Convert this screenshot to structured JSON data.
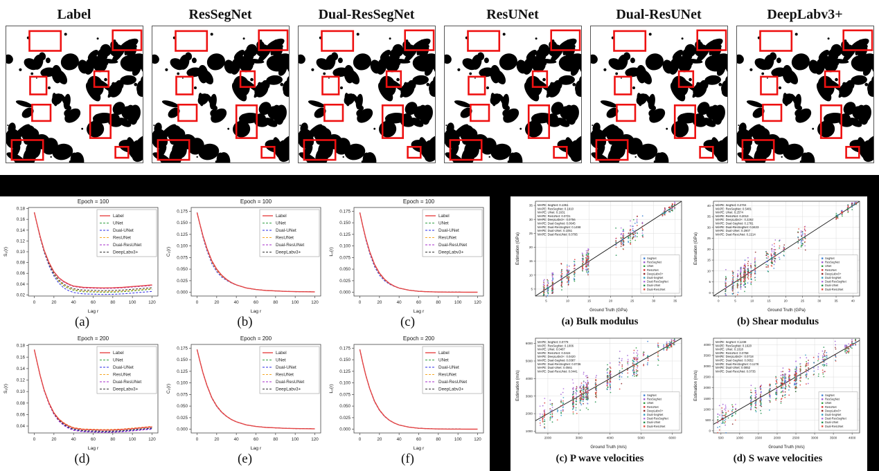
{
  "colors": {
    "background": "#000000",
    "panel": "#ffffff",
    "highlight_box": "#ee1111"
  },
  "top_row": {
    "panels": [
      {
        "title": "Label"
      },
      {
        "title": "ResSegNet"
      },
      {
        "title": "Dual-ResSegNet"
      },
      {
        "title": "ResUNet"
      },
      {
        "title": "Dual-ResUNet"
      },
      {
        "title": "DeepLabv3+"
      }
    ],
    "red_boxes": [
      [
        0.17,
        0.035,
        0.23,
        0.145
      ],
      [
        0.78,
        0.03,
        0.21,
        0.145
      ],
      [
        0.175,
        0.37,
        0.12,
        0.13
      ],
      [
        0.645,
        0.33,
        0.105,
        0.115
      ],
      [
        0.19,
        0.575,
        0.135,
        0.12
      ],
      [
        0.615,
        0.58,
        0.15,
        0.24
      ],
      [
        0.04,
        0.835,
        0.23,
        0.145
      ],
      [
        0.8,
        0.885,
        0.095,
        0.08
      ]
    ]
  },
  "line_series": [
    {
      "name": "Label",
      "color": "#e64545",
      "dash": "solid"
    },
    {
      "name": "UNet",
      "color": "#2e9e3f",
      "dash": "dashed"
    },
    {
      "name": "Dual-UNet",
      "color": "#2929e6",
      "dash": "dashed"
    },
    {
      "name": "ResUNet",
      "color": "#f5a623",
      "dash": "dashed"
    },
    {
      "name": "Dual-ResUNet",
      "color": "#a428c8",
      "dash": "dashed"
    },
    {
      "name": "DeepLabv3+",
      "color": "#333333",
      "dash": "dashed"
    }
  ],
  "scatter_series": [
    {
      "name": "SegNet",
      "color": "#3b7fd4",
      "bias": -0.7
    },
    {
      "name": "ResSegNet",
      "color": "#9b59d0",
      "bias": 1.3
    },
    {
      "name": "UNet",
      "color": "#2e9e3f",
      "bias": -0.5
    },
    {
      "name": "ResUNet",
      "color": "#d93030",
      "bias": 0.15
    },
    {
      "name": "DeepLabv3+",
      "color": "#8c2a2a",
      "bias": 0.3
    },
    {
      "name": "Dual-SegNet",
      "color": "#2c9bbf",
      "bias": -0.2
    },
    {
      "name": "Dual-ResSegNet",
      "color": "#b06fe0",
      "bias": 1.0
    },
    {
      "name": "Dual-UNet",
      "color": "#1f8f4d",
      "bias": -0.4
    },
    {
      "name": "Dual-ResUNet",
      "color": "#e0483a",
      "bias": 0.1
    }
  ],
  "chart_data": [
    {
      "type": "line",
      "caption": "(a)",
      "title": "Epoch = 100",
      "xlabel": "Lag r",
      "ylabel": "S₂(r)",
      "xlim": [
        -6,
        126
      ],
      "ylim": [
        0.018,
        0.182
      ],
      "xticks": [
        0,
        20,
        40,
        60,
        80,
        100,
        120
      ],
      "yticks": [
        0.02,
        0.04,
        0.06,
        0.08,
        0.1,
        0.12,
        0.14,
        0.16,
        0.18
      ],
      "ydec": 2,
      "x": [
        0,
        3,
        6,
        10,
        15,
        20,
        25,
        30,
        35,
        40,
        50,
        60,
        70,
        80,
        90,
        100,
        110,
        120
      ],
      "base": [
        0.173,
        0.15,
        0.128,
        0.103,
        0.08,
        0.063,
        0.052,
        0.045,
        0.04,
        0.0365,
        0.034,
        0.0335,
        0.033,
        0.0332,
        0.034,
        0.0355,
        0.037,
        0.0385
      ],
      "offsets": [
        0,
        -0.008,
        -0.012,
        -0.007,
        -0.001,
        -0.005
      ],
      "offset_mode": "ramp"
    },
    {
      "type": "line",
      "caption": "(b)",
      "title": "Epoch = 100",
      "xlabel": "Lag r",
      "ylabel": "C₂(r)",
      "xlim": [
        -6,
        126
      ],
      "ylim": [
        -0.008,
        0.183
      ],
      "xticks": [
        0,
        20,
        40,
        60,
        80,
        100,
        120
      ],
      "yticks": [
        0.0,
        0.025,
        0.05,
        0.075,
        0.1,
        0.125,
        0.15,
        0.175
      ],
      "ydec": 3,
      "x": [
        0,
        3,
        6,
        10,
        15,
        20,
        25,
        30,
        35,
        40,
        50,
        60,
        70,
        80,
        90,
        100,
        110,
        120
      ],
      "base": [
        0.172,
        0.146,
        0.122,
        0.095,
        0.068,
        0.05,
        0.037,
        0.028,
        0.021,
        0.016,
        0.0095,
        0.006,
        0.004,
        0.003,
        0.002,
        0.0015,
        0.0012,
        0.001
      ],
      "offsets": [
        0,
        -0.002,
        -0.006,
        -0.003,
        0.0005,
        -0.001
      ],
      "offset_mode": "bell"
    },
    {
      "type": "line",
      "caption": "(c)",
      "title": "Epoch = 100",
      "xlabel": "Lag r",
      "ylabel": "L₂(r)",
      "xlim": [
        -6,
        126
      ],
      "ylim": [
        -0.008,
        0.183
      ],
      "xticks": [
        0,
        20,
        40,
        60,
        80,
        100,
        120
      ],
      "yticks": [
        0.0,
        0.025,
        0.05,
        0.075,
        0.1,
        0.125,
        0.15,
        0.175
      ],
      "ydec": 3,
      "x": [
        0,
        3,
        6,
        10,
        15,
        20,
        25,
        30,
        35,
        40,
        50,
        60,
        70,
        80,
        90,
        100,
        110,
        120
      ],
      "base": [
        0.172,
        0.143,
        0.117,
        0.088,
        0.06,
        0.0415,
        0.0285,
        0.0195,
        0.0135,
        0.0092,
        0.0045,
        0.0022,
        0.0012,
        0.0007,
        0.0004,
        0.0003,
        0.0002,
        0.0002
      ],
      "offsets": [
        0,
        -0.001,
        -0.005,
        -0.002,
        0.0005,
        -0.001
      ],
      "offset_mode": "bell"
    },
    {
      "type": "line",
      "caption": "(d)",
      "title": "Epoch = 200",
      "xlabel": "Lag r",
      "ylabel": "S₂(r)",
      "xlim": [
        -6,
        126
      ],
      "ylim": [
        0.028,
        0.182
      ],
      "xticks": [
        0,
        20,
        40,
        60,
        80,
        100,
        120
      ],
      "yticks": [
        0.04,
        0.06,
        0.08,
        0.1,
        0.12,
        0.14,
        0.16,
        0.18
      ],
      "ydec": 2,
      "x": [
        0,
        3,
        6,
        10,
        15,
        20,
        25,
        30,
        35,
        40,
        50,
        60,
        70,
        80,
        90,
        100,
        110,
        120
      ],
      "base": [
        0.173,
        0.15,
        0.128,
        0.103,
        0.08,
        0.063,
        0.052,
        0.045,
        0.04,
        0.0365,
        0.034,
        0.0335,
        0.033,
        0.0332,
        0.034,
        0.0355,
        0.037,
        0.0385
      ],
      "offsets": [
        0,
        -0.002,
        -0.003,
        0.001,
        -0.004,
        -0.002
      ],
      "offset_mode": "ramp"
    },
    {
      "type": "line",
      "caption": "(e)",
      "title": "Epoch = 200",
      "xlabel": "Lag r",
      "ylabel": "C₂(r)",
      "xlim": [
        -6,
        126
      ],
      "ylim": [
        -0.008,
        0.183
      ],
      "xticks": [
        0,
        20,
        40,
        60,
        80,
        100,
        120
      ],
      "yticks": [
        0.0,
        0.025,
        0.05,
        0.075,
        0.1,
        0.125,
        0.15,
        0.175
      ],
      "ydec": 3,
      "x": [
        0,
        3,
        6,
        10,
        15,
        20,
        25,
        30,
        35,
        40,
        50,
        60,
        70,
        80,
        90,
        100,
        110,
        120
      ],
      "base": [
        0.172,
        0.146,
        0.122,
        0.095,
        0.068,
        0.05,
        0.037,
        0.028,
        0.021,
        0.016,
        0.0095,
        0.006,
        0.004,
        0.003,
        0.002,
        0.0015,
        0.0012,
        0.001
      ],
      "offsets": [
        0,
        -0.0005,
        -0.001,
        0.001,
        -0.0005,
        0.0005
      ],
      "offset_mode": "bell"
    },
    {
      "type": "line",
      "caption": "(f)",
      "title": "Epoch = 200",
      "xlabel": "Lag r",
      "ylabel": "L₂(r)",
      "xlim": [
        -6,
        126
      ],
      "ylim": [
        -0.008,
        0.183
      ],
      "xticks": [
        0,
        20,
        40,
        60,
        80,
        100,
        120
      ],
      "yticks": [
        0.0,
        0.025,
        0.05,
        0.075,
        0.1,
        0.125,
        0.15,
        0.175
      ],
      "ydec": 3,
      "x": [
        0,
        3,
        6,
        10,
        15,
        20,
        25,
        30,
        35,
        40,
        50,
        60,
        70,
        80,
        90,
        100,
        110,
        120
      ],
      "base": [
        0.172,
        0.143,
        0.117,
        0.088,
        0.06,
        0.0415,
        0.0285,
        0.0195,
        0.0135,
        0.0092,
        0.0045,
        0.0022,
        0.0012,
        0.0007,
        0.0004,
        0.0003,
        0.0002,
        0.0002
      ],
      "offsets": [
        0,
        -0.0005,
        -0.001,
        0.0008,
        -0.0005,
        0.0003
      ],
      "offset_mode": "bell"
    },
    {
      "type": "scatter",
      "caption": "(a) Bulk modulus",
      "xlabel": "Ground Truth (GPa)",
      "ylabel": "Estimation (GPa)",
      "xlim": [
        2.5,
        36.5
      ],
      "ylim": [
        2.5,
        36.5
      ],
      "xticks": [
        5,
        10,
        15,
        20,
        25,
        30,
        35
      ],
      "yticks": [
        5,
        10,
        15,
        20,
        25,
        30,
        35
      ],
      "noise": 2.0,
      "seed": 11,
      "clusters": [
        {
          "range": [
            4,
            16
          ],
          "n": 40,
          "spread": 1
        },
        {
          "range": [
            21,
            28
          ],
          "n": 16,
          "spread": 1
        },
        {
          "range": [
            32,
            35
          ],
          "n": 10,
          "spread": 0.3
        }
      ],
      "mape": [
        {
          "method": "SegNet",
          "value": "0.1351"
        },
        {
          "method": "ResSegNet",
          "value": "0.1910"
        },
        {
          "method": "UNet",
          "value": "0.1631"
        },
        {
          "method": "ResUNet",
          "value": "0.0721"
        },
        {
          "method": "DeepLabv3+",
          "value": "0.0756"
        },
        {
          "method": "Dual-SegNet",
          "value": "0.0645"
        },
        {
          "method": "Dual-ResSegNet",
          "value": "0.1498"
        },
        {
          "method": "Dual-UNet",
          "value": "0.1051"
        },
        {
          "method": "Dual-ResUNet",
          "value": "0.0795"
        }
      ]
    },
    {
      "type": "scatter",
      "caption": "(b) Shear modulus",
      "xlabel": "Ground Truth (GPa)",
      "ylabel": "Estimation (GPa)",
      "xlim": [
        -1.5,
        42
      ],
      "ylim": [
        -1.5,
        42
      ],
      "xticks": [
        0,
        5,
        10,
        15,
        20,
        25,
        30,
        35,
        40
      ],
      "yticks": [
        0,
        5,
        10,
        15,
        20,
        25,
        30,
        35,
        40
      ],
      "noise": 2.5,
      "seed": 23,
      "clusters": [
        {
          "range": [
            1,
            13
          ],
          "n": 40,
          "spread": 1
        },
        {
          "range": [
            14,
            26
          ],
          "n": 18,
          "spread": 1
        },
        {
          "range": [
            35,
            41
          ],
          "n": 10,
          "spread": 0.3
        }
      ],
      "mape": [
        {
          "method": "SegNet",
          "value": "0.2704"
        },
        {
          "method": "ResSegNet",
          "value": "0.5481"
        },
        {
          "method": "UNet",
          "value": "0.2574"
        },
        {
          "method": "ResUNet",
          "value": "0.2013"
        },
        {
          "method": "DeepLabv3+",
          "value": "0.2262"
        },
        {
          "method": "Dual-SegNet",
          "value": "0.1781"
        },
        {
          "method": "Dual-ResSegNet",
          "value": "0.3423"
        },
        {
          "method": "Dual-UNet",
          "value": "0.2907"
        },
        {
          "method": "Dual-ResUNet",
          "value": "0.2214"
        }
      ]
    },
    {
      "type": "scatter",
      "caption": "(c) P wave velocities",
      "xlabel": "Ground Truth (m/s)",
      "ylabel": "Estimation (m/s)",
      "xlim": [
        1600,
        6300
      ],
      "ylim": [
        900,
        6300
      ],
      "xticks": [
        2000,
        3000,
        4000,
        5000,
        6000
      ],
      "yticks": [
        1000,
        2000,
        3000,
        4000,
        5000,
        6000
      ],
      "noise": 350,
      "seed": 37,
      "clusters": [
        {
          "range": [
            1700,
            2500
          ],
          "n": 10,
          "spread": 1
        },
        {
          "range": [
            2500,
            4200
          ],
          "n": 42,
          "spread": 1
        },
        {
          "range": [
            4300,
            5600
          ],
          "n": 16,
          "spread": 1
        },
        {
          "range": [
            5700,
            6100
          ],
          "n": 10,
          "spread": 0.3
        }
      ],
      "mape": [
        {
          "method": "SegNet",
          "value": "0.0779"
        },
        {
          "method": "ResSegNet",
          "value": "0.1006"
        },
        {
          "method": "UNet",
          "value": "0.0487"
        },
        {
          "method": "ResUNet",
          "value": "0.0424"
        },
        {
          "method": "DeepLabv3+",
          "value": "0.0420"
        },
        {
          "method": "Dual-SegNet",
          "value": "0.0387"
        },
        {
          "method": "Dual-ResSegNet",
          "value": "0.0736"
        },
        {
          "method": "Dual-UNet",
          "value": "0.0561"
        },
        {
          "method": "Dual-ResUNet",
          "value": "0.0441"
        }
      ]
    },
    {
      "type": "scatter",
      "caption": "(d) S wave velocities",
      "xlabel": "Ground Truth (m/s)",
      "ylabel": "Estimation (m/s)",
      "xlim": [
        300,
        4200
      ],
      "ylim": [
        -100,
        4300
      ],
      "xticks": [
        500,
        1000,
        1500,
        2000,
        2500,
        3000,
        3500,
        4000
      ],
      "yticks": [
        0,
        500,
        1000,
        1500,
        2000,
        2500,
        3000,
        3500,
        4000
      ],
      "noise": 280,
      "seed": 53,
      "clusters": [
        {
          "range": [
            400,
            900
          ],
          "n": 8,
          "spread": 1
        },
        {
          "range": [
            900,
            2600
          ],
          "n": 42,
          "spread": 1
        },
        {
          "range": [
            2600,
            3600
          ],
          "n": 14,
          "spread": 1
        },
        {
          "range": [
            3800,
            4100
          ],
          "n": 8,
          "spread": 0.3
        }
      ],
      "mape": [
        {
          "method": "SegNet",
          "value": "0.1238"
        },
        {
          "method": "ResSegNet",
          "value": "0.1620"
        },
        {
          "method": "UNet",
          "value": "0.1018"
        },
        {
          "method": "ResUNet",
          "value": "0.0758"
        },
        {
          "method": "DeepLabv3+",
          "value": "0.0718"
        },
        {
          "method": "Dual-SegNet",
          "value": "0.0652"
        },
        {
          "method": "Dual-ResSegNet",
          "value": "0.1178"
        },
        {
          "method": "Dual-UNet",
          "value": "0.0852"
        },
        {
          "method": "Dual-ResUNet",
          "value": "0.0735"
        }
      ]
    }
  ]
}
